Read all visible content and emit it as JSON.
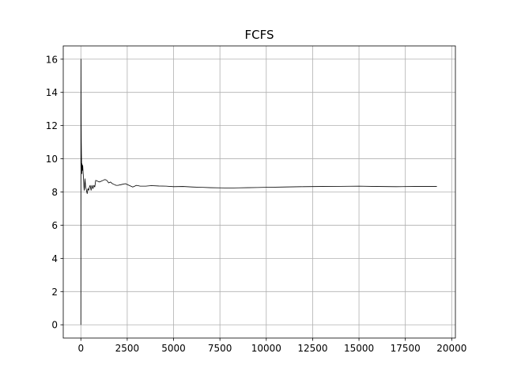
{
  "chart_data": {
    "type": "line",
    "title": "FCFS",
    "xlabel": "",
    "ylabel": "",
    "xlim": [
      -950,
      20200
    ],
    "ylim": [
      -0.8,
      16.8
    ],
    "xticks": [
      0,
      2500,
      5000,
      7500,
      10000,
      12500,
      15000,
      17500,
      20000
    ],
    "xtick_labels": [
      "0",
      "2500",
      "5000",
      "7500",
      "10000",
      "12500",
      "15000",
      "17500",
      "20000"
    ],
    "yticks": [
      0,
      2,
      4,
      6,
      8,
      10,
      12,
      14,
      16
    ],
    "ytick_labels": [
      "0",
      "2",
      "4",
      "6",
      "8",
      "10",
      "12",
      "14",
      "16"
    ],
    "grid": true,
    "colors": {
      "line": "#000000",
      "grid": "#b0b0b0",
      "axes": "#000000"
    },
    "series": [
      {
        "x": [
          0,
          5,
          10,
          15,
          20,
          30,
          40,
          50,
          60,
          80,
          100,
          120,
          140,
          160,
          180,
          200,
          220,
          260,
          300,
          340,
          380,
          420,
          460,
          500,
          550,
          600,
          650,
          700,
          750,
          800,
          900,
          1000,
          1100,
          1200,
          1300,
          1400,
          1500,
          1600,
          1700,
          1800,
          1900,
          2000,
          2200,
          2400,
          2600,
          2800,
          3000,
          3200,
          3500,
          3800,
          4200,
          4600,
          5000,
          5500,
          6000,
          6500,
          7000,
          7500,
          8000,
          8500,
          9000,
          9500,
          10000,
          11000,
          12000,
          13000,
          14000,
          15000,
          16000,
          17000,
          18000,
          19200
        ],
        "y": [
          0,
          16,
          14,
          12.2,
          11.2,
          10.3,
          9.6,
          9.1,
          9.7,
          9.3,
          9.6,
          9.2,
          8.8,
          8.4,
          8.1,
          8.3,
          8.8,
          8.3,
          8.1,
          7.9,
          8.2,
          8.1,
          8.3,
          8.4,
          8.1,
          8.4,
          8.2,
          8.4,
          8.3,
          8.7,
          8.65,
          8.6,
          8.65,
          8.7,
          8.75,
          8.7,
          8.55,
          8.6,
          8.5,
          8.45,
          8.4,
          8.4,
          8.45,
          8.5,
          8.4,
          8.3,
          8.4,
          8.35,
          8.35,
          8.38,
          8.36,
          8.35,
          8.32,
          8.33,
          8.3,
          8.28,
          8.26,
          8.25,
          8.24,
          8.25,
          8.26,
          8.27,
          8.28,
          8.3,
          8.32,
          8.33,
          8.34,
          8.35,
          8.33,
          8.32,
          8.33,
          8.33
        ]
      }
    ]
  }
}
